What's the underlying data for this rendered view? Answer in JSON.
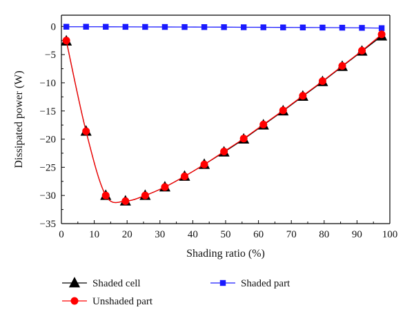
{
  "chart_data": {
    "type": "line",
    "xlabel": "Shading ratio (%)",
    "ylabel": "Dissipated power (W)",
    "xlim": [
      0,
      100
    ],
    "ylim": [
      -35,
      2
    ],
    "xticks": [
      0,
      10,
      20,
      30,
      40,
      50,
      60,
      70,
      80,
      90,
      100
    ],
    "yticks": [
      0,
      -5,
      -10,
      -15,
      -20,
      -25,
      -30,
      -35
    ],
    "x": [
      1.5,
      7.5,
      13.5,
      19.5,
      25.5,
      31.5,
      37.5,
      43.5,
      49.5,
      55.5,
      61.5,
      67.5,
      73.5,
      79.5,
      85.5,
      91.5,
      97.5
    ],
    "series": [
      {
        "name": "Shaded cell",
        "color": "#000000",
        "marker": "triangle",
        "values": [
          -2.6,
          -18.6,
          -30.0,
          -31.0,
          -30.0,
          -28.5,
          -26.6,
          -24.5,
          -22.3,
          -20.0,
          -17.5,
          -15.0,
          -12.4,
          -9.8,
          -7.1,
          -4.4,
          -1.7
        ]
      },
      {
        "name": "Unshaded part",
        "color": "#ff0000",
        "marker": "circle",
        "values": [
          -2.5,
          -18.6,
          -30.0,
          -31.0,
          -30.0,
          -28.5,
          -26.6,
          -24.5,
          -22.2,
          -19.9,
          -17.4,
          -14.9,
          -12.3,
          -9.7,
          -7.0,
          -4.3,
          -1.4
        ]
      },
      {
        "name": "Shaded part",
        "color": "#1a1aff",
        "marker": "square",
        "values": [
          -0.05,
          -0.05,
          -0.06,
          -0.07,
          -0.08,
          -0.09,
          -0.1,
          -0.11,
          -0.12,
          -0.14,
          -0.15,
          -0.17,
          -0.18,
          -0.2,
          -0.22,
          -0.25,
          -0.3
        ]
      }
    ],
    "legend": {
      "placement": "bottom",
      "entries": [
        "Shaded cell",
        "Unshaded part",
        "Shaded part"
      ]
    },
    "grid": false
  }
}
